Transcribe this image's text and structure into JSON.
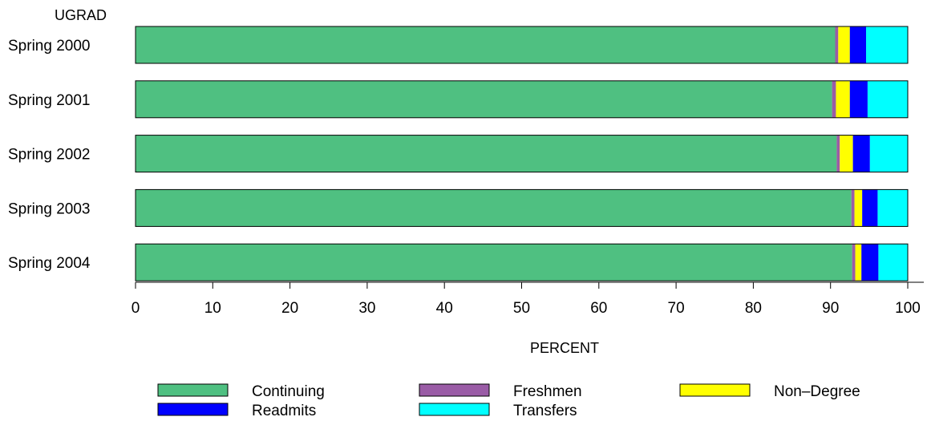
{
  "chart_data": {
    "type": "bar",
    "orientation": "horizontal",
    "stacked": true,
    "group_label": "UGRAD",
    "categories": [
      "Spring 2000",
      "Spring 2001",
      "Spring 2002",
      "Spring 2003",
      "Spring 2004"
    ],
    "series": [
      {
        "name": "Continuing",
        "color": "#4fc081",
        "values": [
          90.6,
          90.2,
          90.8,
          92.7,
          92.8
        ]
      },
      {
        "name": "Freshmen",
        "color": "#9a5ca6",
        "values": [
          0.4,
          0.5,
          0.4,
          0.4,
          0.4
        ]
      },
      {
        "name": "Non–Degree",
        "color": "#ffff00",
        "values": [
          1.5,
          1.8,
          1.7,
          1.0,
          0.8
        ]
      },
      {
        "name": "Readmits",
        "color": "#0000ff",
        "values": [
          2.1,
          2.3,
          2.2,
          2.0,
          2.2
        ]
      },
      {
        "name": "Transfers",
        "color": "#00ffff",
        "values": [
          5.4,
          5.2,
          4.9,
          3.9,
          3.8
        ]
      }
    ],
    "xlabel": "PERCENT",
    "xlim": [
      0,
      100
    ],
    "xticks": [
      "0",
      "10",
      "20",
      "30",
      "40",
      "50",
      "60",
      "70",
      "80",
      "90",
      "100"
    ],
    "grid": false,
    "legend_position": "bottom"
  }
}
